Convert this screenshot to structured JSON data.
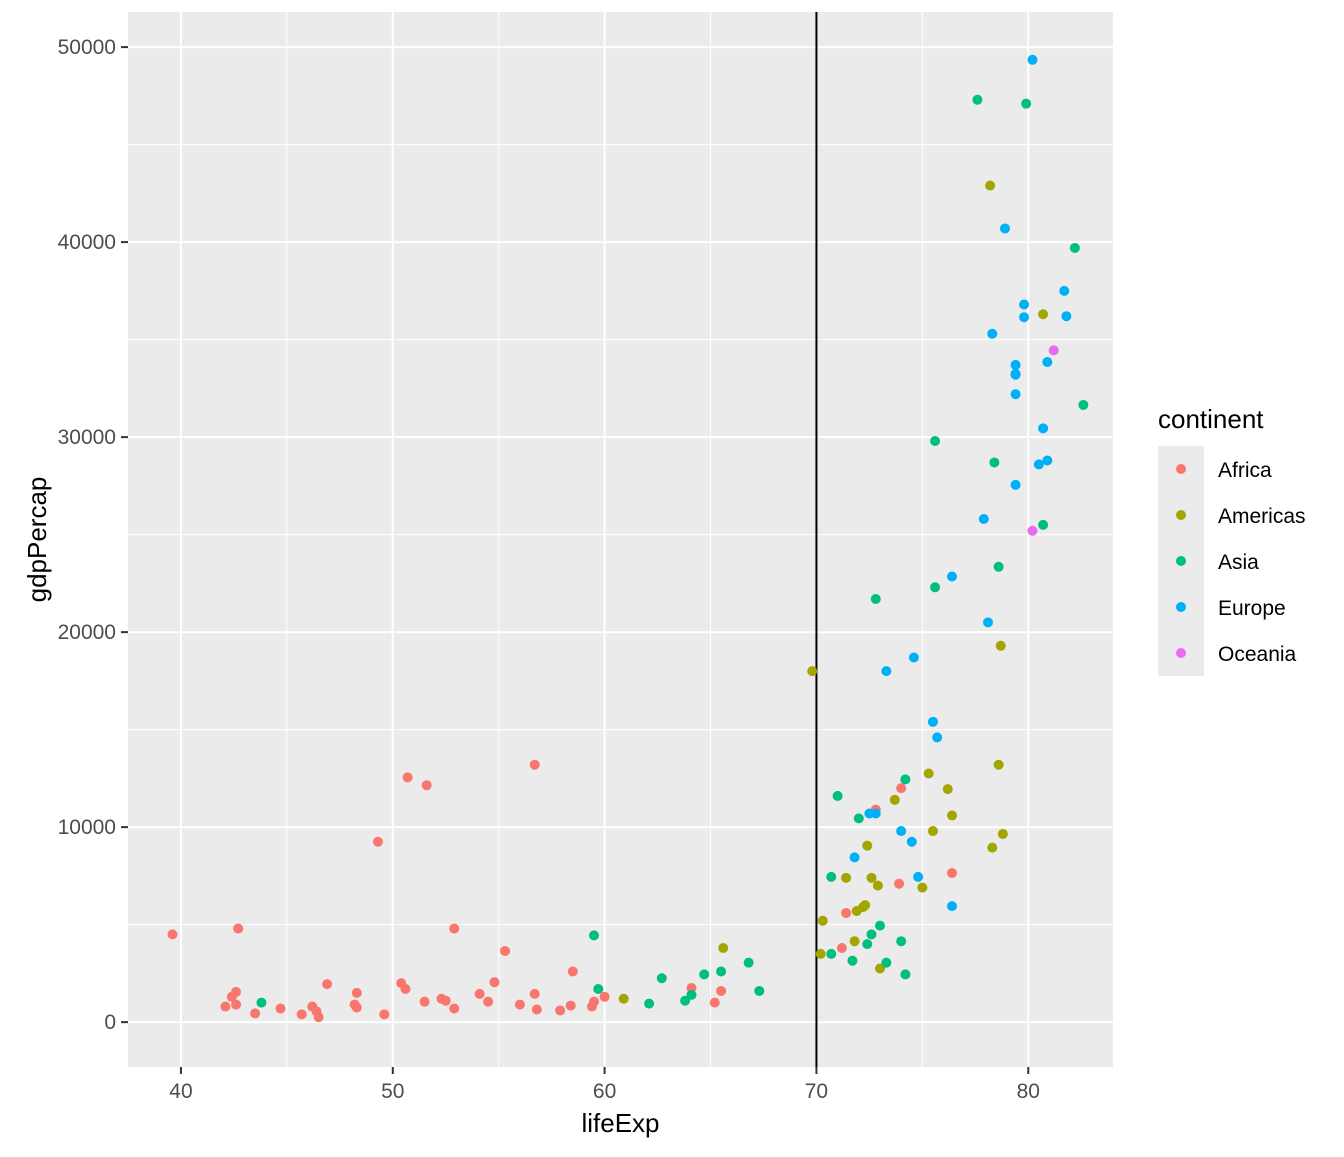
{
  "chart_data": {
    "type": "scatter",
    "title": "",
    "xlabel": "lifeExp",
    "ylabel": "gdpPercap",
    "xlim": [
      37.5,
      84.0
    ],
    "ylim": [
      -2300,
      51800
    ],
    "x_ticks": [
      40,
      50,
      60,
      70,
      80
    ],
    "x_tick_labels": [
      "40",
      "50",
      "60",
      "70",
      "80"
    ],
    "y_ticks": [
      0,
      10000,
      20000,
      30000,
      40000,
      50000
    ],
    "y_tick_labels": [
      "0",
      "10000",
      "20000",
      "30000",
      "40000",
      "50000"
    ],
    "grid": true,
    "background": "#EBEBEB",
    "vline": {
      "x": 70,
      "color": "#000000"
    },
    "legend": {
      "title": "continent",
      "placement": "right",
      "entries": [
        {
          "label": "Africa",
          "color": "#F8766D"
        },
        {
          "label": "Americas",
          "color": "#A3A500"
        },
        {
          "label": "Asia",
          "color": "#00BF7D"
        },
        {
          "label": "Europe",
          "color": "#00B0F6"
        },
        {
          "label": "Oceania",
          "color": "#E76BF3"
        }
      ]
    },
    "series": [
      {
        "name": "Africa",
        "color": "#F8766D",
        "points": [
          [
            39.6,
            4500
          ],
          [
            42.1,
            800
          ],
          [
            42.4,
            1300
          ],
          [
            42.6,
            900
          ],
          [
            42.6,
            1550
          ],
          [
            42.7,
            4800
          ],
          [
            43.5,
            450
          ],
          [
            44.7,
            700
          ],
          [
            45.7,
            400
          ],
          [
            46.2,
            800
          ],
          [
            46.4,
            550
          ],
          [
            46.5,
            250
          ],
          [
            46.9,
            1950
          ],
          [
            48.2,
            900
          ],
          [
            48.3,
            750
          ],
          [
            48.3,
            1500
          ],
          [
            49.3,
            9250
          ],
          [
            49.6,
            400
          ],
          [
            50.4,
            2000
          ],
          [
            50.6,
            1700
          ],
          [
            50.7,
            12550
          ],
          [
            51.5,
            1050
          ],
          [
            51.6,
            12150
          ],
          [
            52.3,
            1200
          ],
          [
            52.5,
            1100
          ],
          [
            52.9,
            700
          ],
          [
            52.9,
            4800
          ],
          [
            54.1,
            1450
          ],
          [
            54.5,
            1050
          ],
          [
            54.8,
            2050
          ],
          [
            55.3,
            3650
          ],
          [
            56.0,
            900
          ],
          [
            56.7,
            1450
          ],
          [
            56.7,
            13200
          ],
          [
            56.8,
            650
          ],
          [
            57.9,
            600
          ],
          [
            58.4,
            850
          ],
          [
            58.5,
            2600
          ],
          [
            59.4,
            800
          ],
          [
            59.5,
            1050
          ],
          [
            60.0,
            1300
          ],
          [
            64.1,
            1750
          ],
          [
            65.2,
            1000
          ],
          [
            65.5,
            1600
          ],
          [
            71.2,
            3800
          ],
          [
            71.4,
            5600
          ],
          [
            72.8,
            10900
          ],
          [
            73.9,
            7100
          ],
          [
            74.0,
            12000
          ],
          [
            76.4,
            7650
          ]
        ]
      },
      {
        "name": "Americas",
        "color": "#A3A500",
        "points": [
          [
            60.9,
            1200
          ],
          [
            65.6,
            3800
          ],
          [
            69.8,
            18000
          ],
          [
            70.2,
            3500
          ],
          [
            70.3,
            5200
          ],
          [
            71.4,
            7400
          ],
          [
            71.8,
            4150
          ],
          [
            71.9,
            5700
          ],
          [
            72.2,
            5900
          ],
          [
            72.3,
            6000
          ],
          [
            72.4,
            9050
          ],
          [
            72.6,
            7400
          ],
          [
            72.9,
            7000
          ],
          [
            73.0,
            2750
          ],
          [
            73.7,
            11400
          ],
          [
            75.0,
            6900
          ],
          [
            75.3,
            12750
          ],
          [
            75.5,
            9800
          ],
          [
            76.2,
            11950
          ],
          [
            76.4,
            10600
          ],
          [
            78.2,
            42900
          ],
          [
            78.3,
            8950
          ],
          [
            78.6,
            13200
          ],
          [
            78.7,
            19300
          ],
          [
            78.8,
            9650
          ],
          [
            80.7,
            36300
          ]
        ]
      },
      {
        "name": "Asia",
        "color": "#00BF7D",
        "points": [
          [
            43.8,
            1000
          ],
          [
            59.5,
            4450
          ],
          [
            59.7,
            1700
          ],
          [
            62.1,
            950
          ],
          [
            62.7,
            2250
          ],
          [
            63.8,
            1100
          ],
          [
            64.1,
            1400
          ],
          [
            64.7,
            2450
          ],
          [
            65.5,
            2600
          ],
          [
            66.8,
            3050
          ],
          [
            67.3,
            1600
          ],
          [
            70.7,
            3500
          ],
          [
            70.7,
            7450
          ],
          [
            71.0,
            11600
          ],
          [
            71.7,
            3150
          ],
          [
            72.0,
            10450
          ],
          [
            72.4,
            4000
          ],
          [
            72.6,
            4500
          ],
          [
            72.8,
            21700
          ],
          [
            73.0,
            4950
          ],
          [
            73.3,
            3050
          ],
          [
            74.0,
            4150
          ],
          [
            74.2,
            12450
          ],
          [
            74.2,
            2450
          ],
          [
            75.6,
            29800
          ],
          [
            75.6,
            22300
          ],
          [
            77.6,
            47300
          ],
          [
            78.4,
            28700
          ],
          [
            78.6,
            23350
          ],
          [
            79.9,
            47100
          ],
          [
            80.7,
            25500
          ],
          [
            82.2,
            39700
          ],
          [
            82.6,
            31650
          ]
        ]
      },
      {
        "name": "Europe",
        "color": "#00B0F6",
        "points": [
          [
            71.8,
            8450
          ],
          [
            72.5,
            10700
          ],
          [
            72.8,
            10700
          ],
          [
            73.3,
            18000
          ],
          [
            74.0,
            9800
          ],
          [
            74.5,
            9250
          ],
          [
            74.6,
            18700
          ],
          [
            74.8,
            7450
          ],
          [
            75.5,
            15400
          ],
          [
            75.7,
            14600
          ],
          [
            76.4,
            5950
          ],
          [
            76.4,
            22850
          ],
          [
            77.9,
            25800
          ],
          [
            78.1,
            20500
          ],
          [
            78.3,
            35300
          ],
          [
            78.9,
            40700
          ],
          [
            79.4,
            33200
          ],
          [
            79.4,
            33700
          ],
          [
            79.4,
            33250
          ],
          [
            79.4,
            32200
          ],
          [
            79.4,
            27550
          ],
          [
            79.8,
            36800
          ],
          [
            79.8,
            36150
          ],
          [
            80.2,
            49350
          ],
          [
            80.5,
            28600
          ],
          [
            80.7,
            30450
          ],
          [
            80.9,
            33850
          ],
          [
            80.9,
            28800
          ],
          [
            81.7,
            37500
          ],
          [
            81.8,
            36200
          ]
        ]
      },
      {
        "name": "Oceania",
        "color": "#E76BF3",
        "points": [
          [
            80.2,
            25200
          ],
          [
            81.2,
            34450
          ]
        ]
      }
    ]
  }
}
